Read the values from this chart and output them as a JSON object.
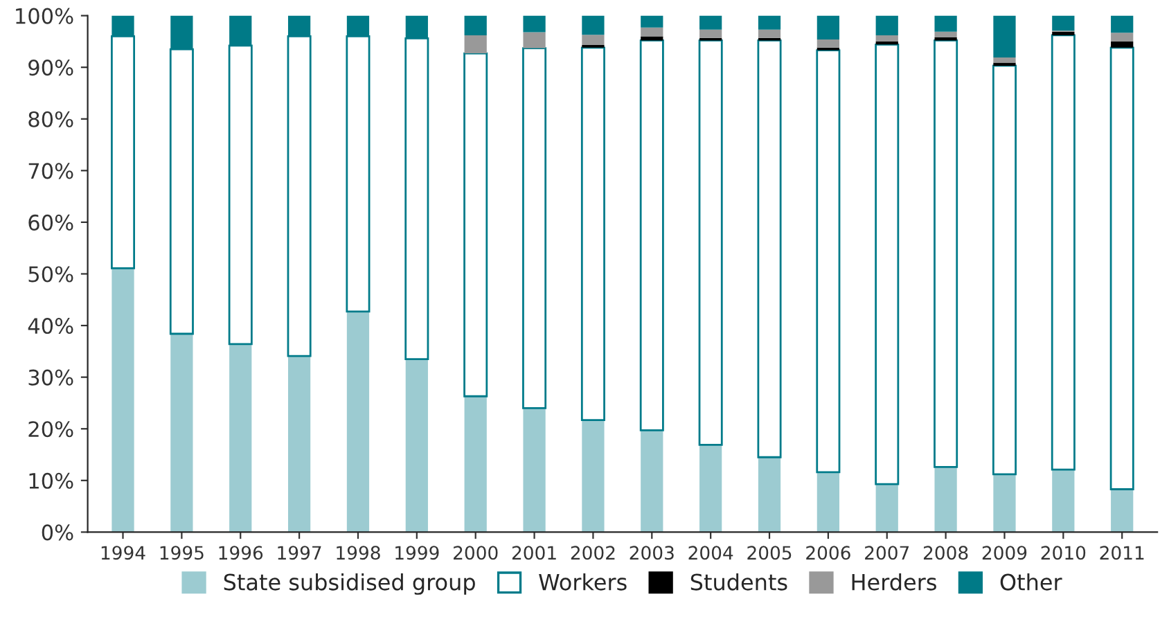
{
  "chart_data": {
    "type": "bar",
    "stacked": true,
    "categories": [
      "1994",
      "1995",
      "1996",
      "1997",
      "1998",
      "1999",
      "2000",
      "2001",
      "2002",
      "2003",
      "2004",
      "2005",
      "2006",
      "2007",
      "2008",
      "2009",
      "2010",
      "2011"
    ],
    "series": [
      {
        "name": "State subsidised group",
        "color": "#9ccbd1",
        "values": [
          51.1,
          38.4,
          36.4,
          34.1,
          42.7,
          33.5,
          26.3,
          24.0,
          21.7,
          19.7,
          16.9,
          14.5,
          11.6,
          9.3,
          12.6,
          11.2,
          12.1,
          8.3
        ]
      },
      {
        "name": "Workers",
        "color": "#ffffff",
        "values": [
          44.9,
          55.1,
          57.8,
          61.9,
          53.3,
          62.1,
          66.4,
          69.7,
          72.1,
          75.5,
          78.3,
          80.7,
          81.7,
          85.1,
          82.6,
          79.1,
          84.1,
          85.5
        ]
      },
      {
        "name": "Students",
        "color": "#000000",
        "values": [
          null,
          null,
          null,
          null,
          null,
          null,
          null,
          null,
          0.5,
          0.8,
          0.5,
          0.5,
          0.5,
          0.6,
          0.6,
          0.6,
          0.7,
          1.2
        ]
      },
      {
        "name": "Herders",
        "color": "#999999",
        "values": [
          null,
          null,
          null,
          null,
          null,
          null,
          3.5,
          3.1,
          2.0,
          1.7,
          1.6,
          1.6,
          1.6,
          1.2,
          1.1,
          1.0,
          0.2,
          1.7
        ]
      },
      {
        "name": "Other",
        "color": "#007a87",
        "values": [
          4.0,
          6.5,
          5.8,
          4.0,
          4.0,
          4.4,
          3.8,
          3.2,
          3.7,
          2.3,
          2.7,
          2.7,
          4.6,
          3.8,
          3.1,
          8.1,
          2.9,
          3.3
        ]
      }
    ],
    "ylim": [
      0,
      100
    ],
    "yticks": [
      {
        "value": 0,
        "label": "0%"
      },
      {
        "value": 10,
        "label": "10%"
      },
      {
        "value": 20,
        "label": "20%"
      },
      {
        "value": 30,
        "label": "30%"
      },
      {
        "value": 40,
        "label": "40%"
      },
      {
        "value": 50,
        "label": "50%"
      },
      {
        "value": 60,
        "label": "60%"
      },
      {
        "value": 70,
        "label": "70%"
      },
      {
        "value": 80,
        "label": "80%"
      },
      {
        "value": 90,
        "label": "90%"
      },
      {
        "value": 100,
        "label": "100%"
      }
    ],
    "grid": false,
    "legend": "bottom"
  }
}
